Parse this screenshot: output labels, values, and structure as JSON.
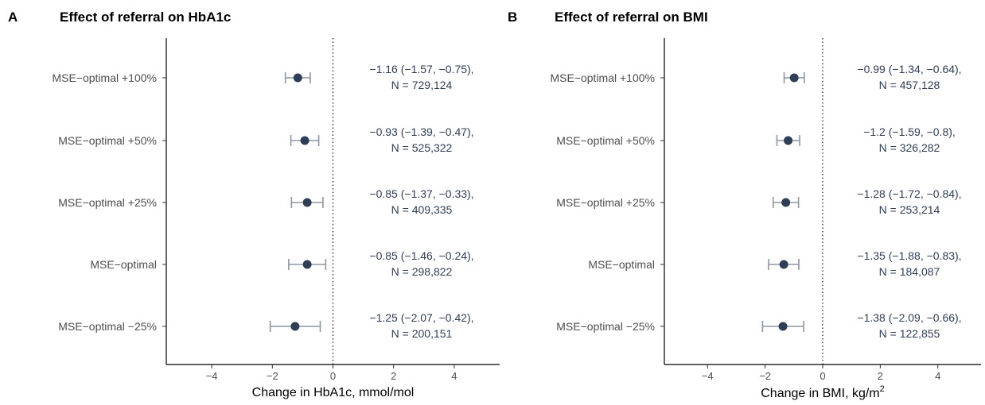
{
  "chart_data": [
    {
      "type": "forest",
      "panel": "A",
      "title": "Effect of referral on HbA1c",
      "xlabel": "Change in HbA1c, mmol/mol",
      "xlabel_superscript": "",
      "xlim": [
        -5.5,
        5.5
      ],
      "xticks": [
        -4,
        -2,
        0,
        2,
        4
      ],
      "tick_labels": [
        "−4",
        "−2",
        "0",
        "2",
        "4"
      ],
      "reference_line": 0,
      "point_color": "#2e3e57",
      "errorbar_color": "#8c96a3",
      "categories": [
        "MSE−optimal +100%",
        "MSE−optimal +50%",
        "MSE−optimal +25%",
        "MSE−optimal",
        "MSE−optimal −25%"
      ],
      "estimates": [
        -1.16,
        -0.93,
        -0.85,
        -0.85,
        -1.25
      ],
      "lower": [
        -1.57,
        -1.39,
        -1.37,
        -1.46,
        -2.07
      ],
      "upper": [
        -0.75,
        -0.47,
        -0.33,
        -0.24,
        -0.42
      ],
      "annotations": [
        {
          "line1": "−1.16 (−1.57, −0.75),",
          "line2": "N = 729,124"
        },
        {
          "line1": "−0.93 (−1.39, −0.47),",
          "line2": "N = 525,322"
        },
        {
          "line1": "−0.85 (−1.37, −0.33),",
          "line2": "N = 409,335"
        },
        {
          "line1": "−0.85 (−1.46, −0.24),",
          "line2": "N = 298,822"
        },
        {
          "line1": "−1.25 (−2.07, −0.42),",
          "line2": "N = 200,151"
        }
      ]
    },
    {
      "type": "forest",
      "panel": "B",
      "title": "Effect of referral on BMI",
      "xlabel": "Change in BMI, kg/m",
      "xlabel_superscript": "2",
      "xlim": [
        -5.5,
        5.5
      ],
      "xticks": [
        -4,
        -2,
        0,
        2,
        4
      ],
      "tick_labels": [
        "−4",
        "−2",
        "0",
        "2",
        "4"
      ],
      "reference_line": 0,
      "point_color": "#2e3e57",
      "errorbar_color": "#8c96a3",
      "categories": [
        "MSE−optimal +100%",
        "MSE−optimal +50%",
        "MSE−optimal +25%",
        "MSE−optimal",
        "MSE−optimal −25%"
      ],
      "estimates": [
        -0.99,
        -1.2,
        -1.28,
        -1.35,
        -1.38
      ],
      "lower": [
        -1.34,
        -1.59,
        -1.72,
        -1.88,
        -2.09
      ],
      "upper": [
        -0.64,
        -0.8,
        -0.84,
        -0.83,
        -0.66
      ],
      "annotations": [
        {
          "line1": "−0.99 (−1.34, −0.64),",
          "line2": "N = 457,128"
        },
        {
          "line1": "−1.2 (−1.59, −0.8),",
          "line2": "N = 326,282"
        },
        {
          "line1": "−1.28 (−1.72, −0.84),",
          "line2": "N = 253,214"
        },
        {
          "line1": "−1.35 (−1.88, −0.83),",
          "line2": "N = 184,087"
        },
        {
          "line1": "−1.38 (−2.09, −0.66),",
          "line2": "N = 122,855"
        }
      ]
    }
  ]
}
